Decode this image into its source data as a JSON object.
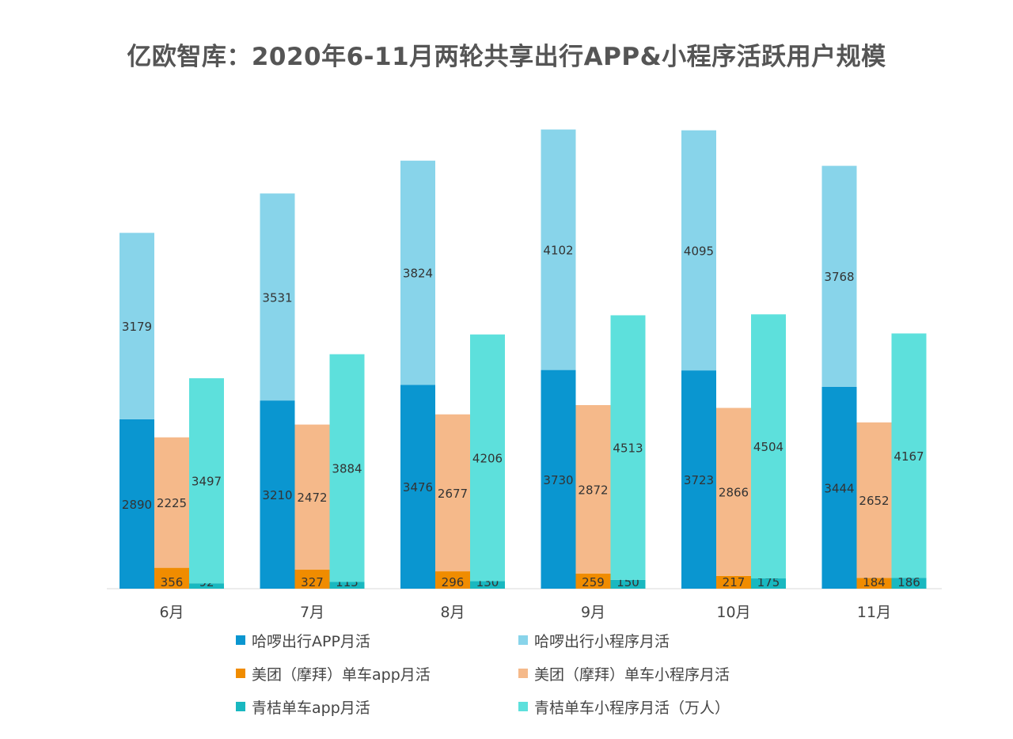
{
  "chart_data": {
    "type": "bar",
    "stacked": true,
    "title": "亿欧智库：2020年6-11月两轮共享出行APP&小程序活跃用户规模",
    "categories": [
      "6月",
      "7月",
      "8月",
      "9月",
      "10月",
      "11月"
    ],
    "grid": false,
    "legend_position": "bottom",
    "stacks": [
      {
        "series": [
          {
            "name": "哈啰出行APP月活",
            "color": "#0a96d0",
            "values": [
              2890,
              3210,
              3476,
              3730,
              3723,
              3444
            ]
          },
          {
            "name": "哈啰出行小程序月活",
            "color": "#88d4ea",
            "values": [
              3179,
              3531,
              3824,
              4102,
              4095,
              3768
            ]
          }
        ]
      },
      {
        "series": [
          {
            "name": "美团（摩拜）单车app月活",
            "color": "#f08c00",
            "values": [
              356,
              327,
              296,
              259,
              217,
              184
            ]
          },
          {
            "name": "美团（摩拜）单车小程序月活",
            "color": "#f5b98a",
            "values": [
              2225,
              2472,
              2677,
              2872,
              2866,
              2652
            ]
          }
        ]
      },
      {
        "series": [
          {
            "name": "青桔单车app月活",
            "color": "#19b8c0",
            "values": [
              92,
              115,
              130,
              150,
              175,
              186
            ]
          },
          {
            "name": "青桔单车小程序月活（万人）",
            "color": "#5de0dc",
            "values": [
              3497,
              3884,
              4206,
              4513,
              4504,
              4167
            ]
          }
        ]
      }
    ]
  }
}
